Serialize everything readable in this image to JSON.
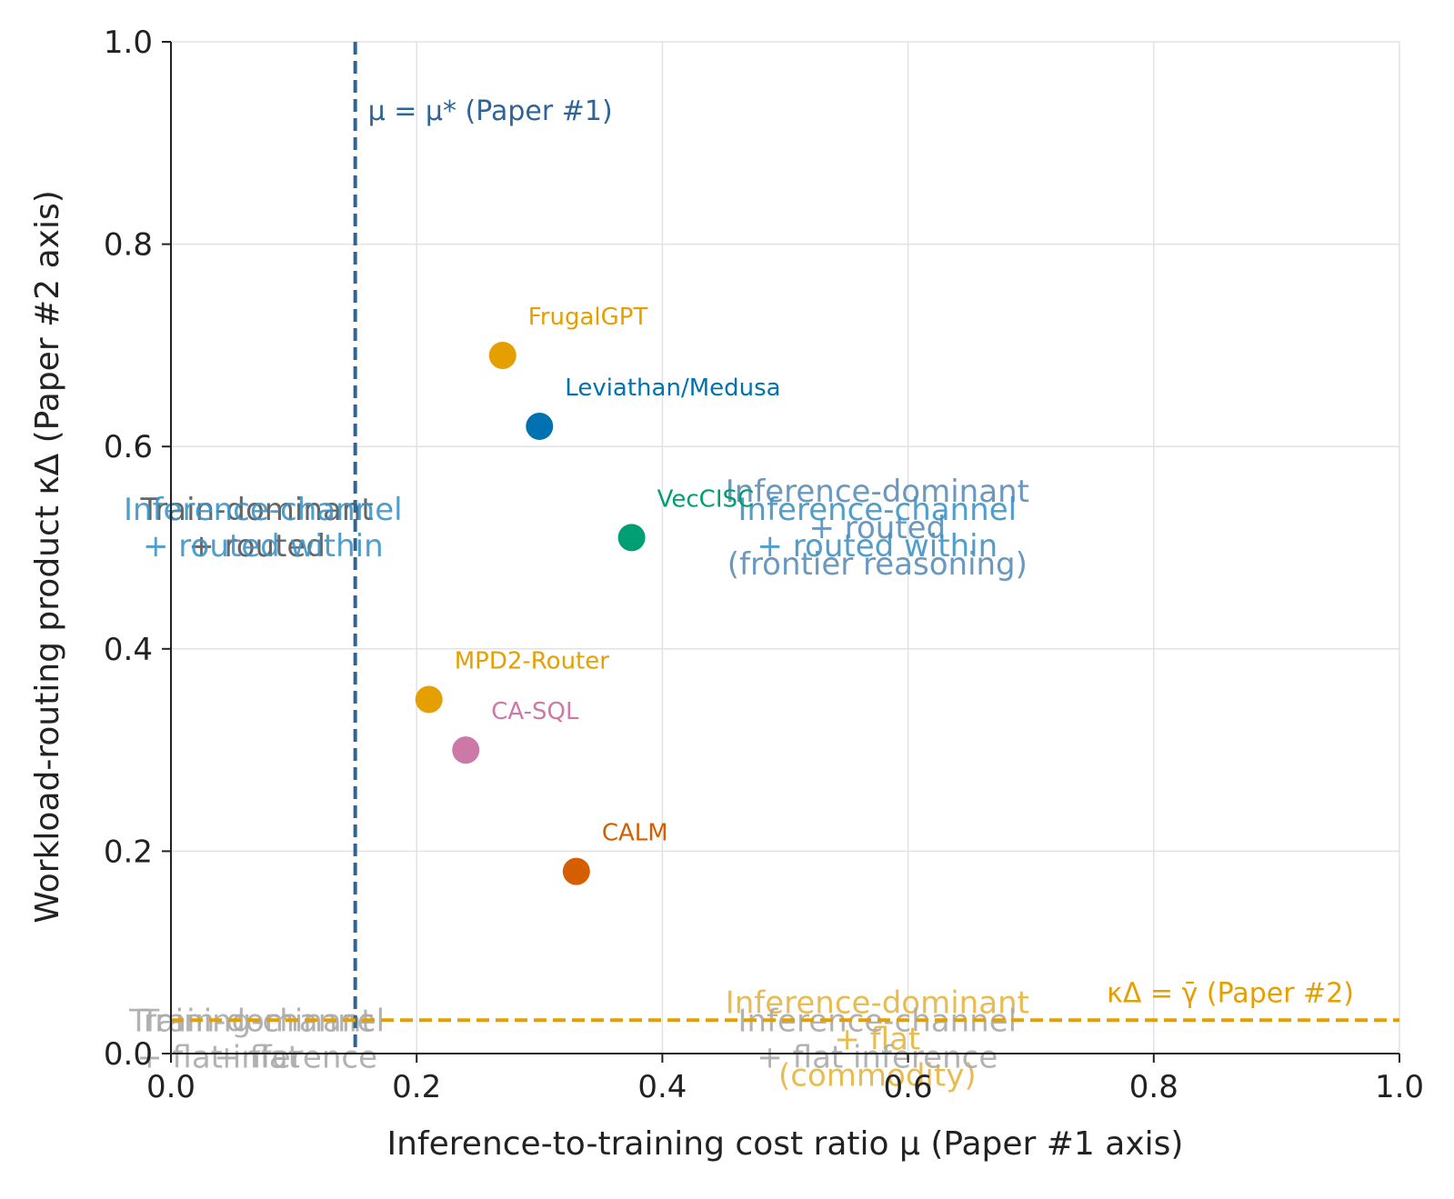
{
  "chart_data": {
    "type": "scatter",
    "xlabel": "Inference-to-training cost ratio μ (Paper #1 axis)",
    "ylabel": "Workload-routing product κΔ (Paper #2 axis)",
    "xlim": [
      0,
      1
    ],
    "ylim": [
      0,
      1
    ],
    "xticks": [
      "0.0",
      "0.2",
      "0.4",
      "0.6",
      "0.8",
      "1.0"
    ],
    "yticks": [
      "0.0",
      "0.2",
      "0.4",
      "0.6",
      "0.8",
      "1.0"
    ],
    "grid": true,
    "points": [
      {
        "label": "FrugalGPT",
        "x": 0.27,
        "y": 0.69,
        "color": "#e69f00"
      },
      {
        "label": "Leviathan/Medusa",
        "x": 0.3,
        "y": 0.62,
        "color": "#0072b2"
      },
      {
        "label": "VecCISC",
        "x": 0.375,
        "y": 0.51,
        "color": "#009e73"
      },
      {
        "label": "MPD2-Router",
        "x": 0.21,
        "y": 0.35,
        "color": "#e69f00"
      },
      {
        "label": "CA-SQL",
        "x": 0.24,
        "y": 0.3,
        "color": "#cc79a7"
      },
      {
        "label": "CALM",
        "x": 0.33,
        "y": 0.18,
        "color": "#d55e00"
      }
    ],
    "reference_lines": [
      {
        "orientation": "vertical",
        "value": 0.15,
        "label": "μ = μ* (Paper #1)",
        "color": "#2f6494"
      },
      {
        "orientation": "horizontal",
        "value": 0.033,
        "label": "κΔ = γ̄ (Paper #2)",
        "color": "#e69f00"
      }
    ],
    "regions": [
      {
        "lines": [
          "Train-dominant",
          "+ routed"
        ],
        "x": 0.07,
        "y": 0.52,
        "color": "#555555",
        "opacity": 0.9
      },
      {
        "lines": [
          "Inference-channel",
          "+ routed within"
        ],
        "x": 0.075,
        "y": 0.52,
        "color": "#3d94c6",
        "opacity": 0.9
      },
      {
        "lines": [
          "Inference-dominant",
          "+ routed",
          "(frontier reasoning)"
        ],
        "x": 0.575,
        "y": 0.52,
        "color": "#5b8db8",
        "opacity": 0.9
      },
      {
        "lines": [
          "Inference-channel",
          "+ routed within"
        ],
        "x": 0.575,
        "y": 0.52,
        "color": "#3d94c6",
        "opacity": 0.9
      },
      {
        "lines": [
          "Training-channel",
          "+ flat inference"
        ],
        "x": 0.07,
        "y": 0.015,
        "color": "#aaaaaa",
        "opacity": 0.9
      },
      {
        "lines": [
          "Train-dominant",
          "+ flat"
        ],
        "x": 0.07,
        "y": 0.015,
        "color": "#aaaaaa",
        "opacity": 0.9
      },
      {
        "lines": [
          "Inference-dominant",
          "+ flat",
          "(commodity)"
        ],
        "x": 0.575,
        "y": 0.015,
        "color": "#e8b84a",
        "opacity": 0.95
      },
      {
        "lines": [
          "Inference-channel",
          "+ flat inference"
        ],
        "x": 0.575,
        "y": 0.015,
        "color": "#aaaaaa",
        "opacity": 0.9
      }
    ]
  }
}
